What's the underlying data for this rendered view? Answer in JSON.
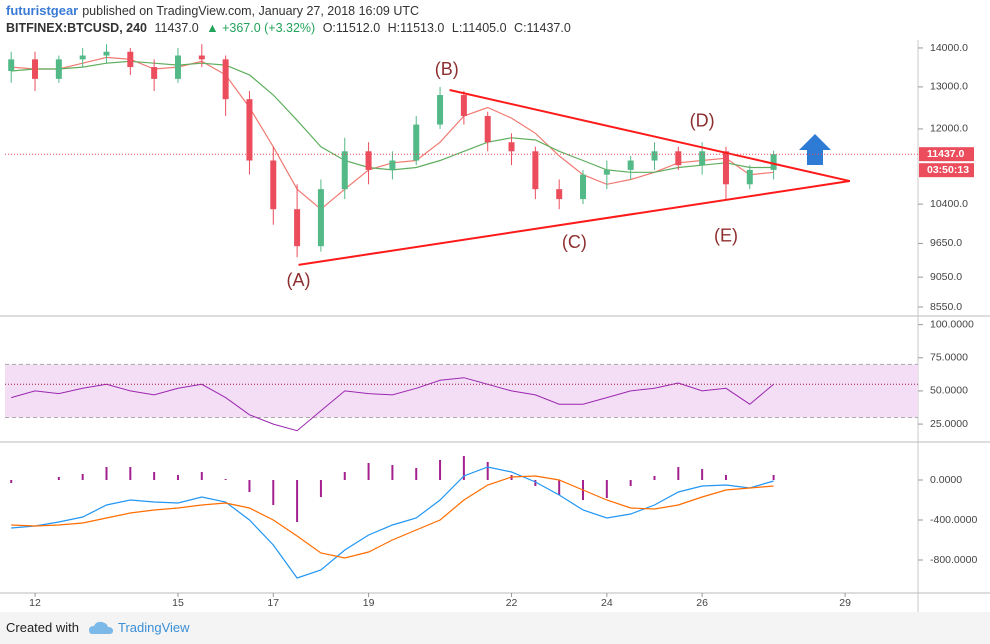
{
  "header": {
    "author": "futuristgear",
    "published": "published on TradingView.com, January 27, 2018 16:09 UTC",
    "symbol": "BITFINEX:BTCUSD, 240",
    "price": "11437.0",
    "change": "▲ +367.0 (+3.32%)",
    "ohlc": [
      "O:11512.0",
      "H:11513.0",
      "L:11405.0",
      "C:11437.0"
    ]
  },
  "chart_data": [
    {
      "type": "candlestick",
      "log_scale": true,
      "x": [
        11.5,
        12,
        12.5,
        13,
        13.5,
        14,
        14.5,
        15,
        15.5,
        16,
        16.5,
        17,
        17.5,
        18,
        18.5,
        19,
        19.5,
        20,
        20.5,
        21,
        21.5,
        22,
        22.5,
        23,
        23.5,
        24,
        24.5,
        25,
        25.5,
        26,
        26.5,
        27,
        27.5
      ],
      "open": [
        13400,
        13700,
        13200,
        13700,
        13800,
        13900,
        13500,
        13200,
        13800,
        13700,
        12700,
        11300,
        10300,
        9600,
        10700,
        11500,
        11100,
        11300,
        12100,
        12800,
        12300,
        11700,
        11500,
        10700,
        10500,
        11000,
        11100,
        11300,
        11500,
        11200,
        11500,
        10800,
        11100
      ],
      "high": [
        13900,
        13900,
        13800,
        14000,
        14100,
        14000,
        13700,
        14000,
        14100,
        13800,
        12900,
        11600,
        10800,
        10900,
        11800,
        11700,
        11500,
        12300,
        13000,
        12900,
        12400,
        11900,
        11600,
        10900,
        11100,
        11300,
        11400,
        11700,
        11600,
        11700,
        11600,
        11200,
        11513
      ],
      "low": [
        13100,
        12900,
        13100,
        13500,
        13600,
        13300,
        12900,
        13100,
        13500,
        12300,
        11000,
        10000,
        9400,
        9500,
        10500,
        10800,
        10900,
        11200,
        12000,
        12100,
        11500,
        11200,
        10500,
        10300,
        10400,
        10700,
        10900,
        11100,
        11100,
        11000,
        10500,
        10700,
        10900
      ],
      "close": [
        13700,
        13200,
        13700,
        13800,
        13900,
        13500,
        13200,
        13800,
        13700,
        12700,
        11300,
        10300,
        9600,
        10700,
        11500,
        11100,
        11300,
        12100,
        12800,
        12300,
        11700,
        11500,
        10700,
        10500,
        11000,
        11100,
        11300,
        11500,
        11200,
        11500,
        10800,
        11100,
        11437
      ],
      "up_color": "#53b987",
      "down_color": "#eb4d5c",
      "overlays": [
        {
          "color": "#f07a72",
          "values": [
            13500,
            13450,
            13450,
            13600,
            13750,
            13700,
            13450,
            13500,
            13650,
            13300,
            12500,
            11600,
            10700,
            10300,
            10700,
            11100,
            11250,
            11300,
            11700,
            12300,
            12500,
            12250,
            11900,
            11400,
            11000,
            10800,
            10900,
            11050,
            11250,
            11300,
            11350,
            11000,
            11050
          ]
        },
        {
          "color": "#5fae5f",
          "values": [
            13400,
            13450,
            13450,
            13500,
            13600,
            13650,
            13600,
            13550,
            13600,
            13550,
            13300,
            12800,
            12200,
            11600,
            11300,
            11150,
            11100,
            11150,
            11300,
            11500,
            11700,
            11800,
            11750,
            11500,
            11300,
            11100,
            11050,
            11050,
            11150,
            11200,
            11250,
            11150,
            11150
          ]
        }
      ],
      "trendlines": [
        {
          "color": "#ff1a1a",
          "points": [
            [
              17.53,
              9264
            ],
            [
              29.1,
              10867
            ]
          ]
        },
        {
          "color": "#ff1a1a",
          "points": [
            [
              20.7,
              12924
            ],
            [
              29.1,
              10867
            ]
          ]
        }
      ],
      "annotations": [
        {
          "text": "(A)",
          "x": 17.53,
          "y": 8980
        },
        {
          "text": "(B)",
          "x": 20.64,
          "y": 13425
        },
        {
          "text": "(C)",
          "x": 23.32,
          "y": 9650
        },
        {
          "text": "(D)",
          "x": 26.0,
          "y": 12160
        },
        {
          "text": "(E)",
          "x": 26.5,
          "y": 9770
        }
      ],
      "last_price": {
        "value": 11437,
        "label": "11437.0"
      },
      "countdown": "03:50:13",
      "xlim": [
        11.37,
        30.53
      ],
      "xticks": [
        12,
        15,
        17,
        19,
        22,
        24,
        26,
        29
      ],
      "ylim": [
        8437,
        14160
      ],
      "yticks": [
        {
          "value": 14000,
          "label": "14000.0"
        },
        {
          "value": 13000,
          "label": "13000.0"
        },
        {
          "value": 12000,
          "label": "12000.0"
        },
        {
          "value": 10400,
          "label": "10400.0"
        },
        {
          "value": 9650,
          "label": "9650.0"
        },
        {
          "value": 9050,
          "label": "9050.0"
        },
        {
          "value": 8550,
          "label": "8550.0"
        }
      ]
    },
    {
      "type": "line",
      "series": [
        {
          "color": "#9c27b0",
          "values": [
            45,
            50,
            48,
            52,
            55,
            50,
            47,
            52,
            55,
            45,
            32,
            25,
            20,
            35,
            50,
            48,
            47,
            52,
            58,
            60,
            55,
            50,
            47,
            40,
            40,
            45,
            50,
            52,
            56,
            50,
            52,
            40,
            55
          ]
        }
      ],
      "band": [
        30,
        70
      ],
      "band_color": "#f3def6",
      "ylim": [
        13,
        105
      ],
      "yticks": [
        {
          "value": 100,
          "label": "100.0000"
        },
        {
          "value": 75,
          "label": "75.0000"
        },
        {
          "value": 50,
          "label": "50.0000"
        },
        {
          "value": 25,
          "label": "25.0000"
        }
      ]
    },
    {
      "type": "macd",
      "series": [
        {
          "color": "#2196f3",
          "values": [
            -480,
            -460,
            -420,
            -370,
            -250,
            -200,
            -220,
            -230,
            -170,
            -220,
            -400,
            -650,
            -980,
            -900,
            -700,
            -550,
            -450,
            -380,
            -200,
            40,
            130,
            80,
            -20,
            -150,
            -300,
            -380,
            -340,
            -250,
            -120,
            -60,
            -50,
            -80,
            -10
          ]
        },
        {
          "color": "#ff6d00",
          "values": [
            -450,
            -460,
            -450,
            -430,
            -380,
            -330,
            -300,
            -280,
            -250,
            -230,
            -280,
            -400,
            -560,
            -730,
            -780,
            -720,
            -600,
            -500,
            -400,
            -200,
            -50,
            30,
            40,
            0,
            -100,
            -200,
            -280,
            -290,
            -250,
            -170,
            -100,
            -80,
            -60
          ]
        }
      ],
      "histogram": {
        "color": "#a3208f",
        "values": [
          -30,
          0,
          30,
          60,
          130,
          130,
          80,
          50,
          80,
          10,
          -120,
          -250,
          -420,
          -170,
          80,
          170,
          150,
          120,
          200,
          240,
          180,
          50,
          -60,
          -150,
          -200,
          -180,
          -60,
          40,
          130,
          110,
          50,
          0,
          50
        ]
      },
      "ylim": [
        -1120,
        350
      ],
      "yticks": [
        {
          "value": 0,
          "label": "0.0000"
        },
        {
          "value": -400,
          "label": "-400.0000"
        },
        {
          "value": -800,
          "label": "-800.0000"
        }
      ]
    }
  ],
  "footer": {
    "created": "Created with",
    "brand": "TradingView"
  }
}
